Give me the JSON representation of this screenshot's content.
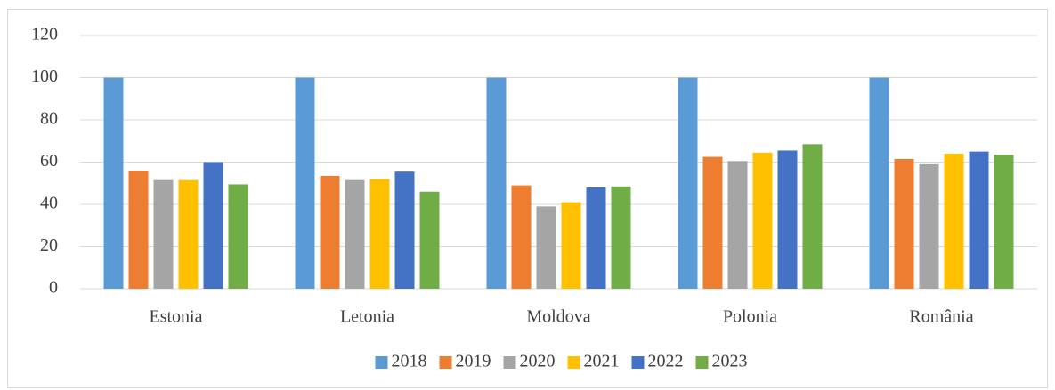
{
  "chart_data": {
    "type": "bar",
    "categories": [
      "Estonia",
      "Letonia",
      "Moldova",
      "Polonia",
      "România"
    ],
    "series": [
      {
        "name": "2018",
        "color": "#5b9bd5",
        "values": [
          100,
          100,
          100,
          100,
          100
        ]
      },
      {
        "name": "2019",
        "color": "#ed7d31",
        "values": [
          56,
          53.5,
          49,
          62.5,
          61.5
        ]
      },
      {
        "name": "2020",
        "color": "#a5a5a5",
        "values": [
          51.5,
          51.5,
          39,
          60.5,
          59
        ]
      },
      {
        "name": "2021",
        "color": "#ffc000",
        "values": [
          51.5,
          52,
          41,
          64.5,
          64
        ]
      },
      {
        "name": "2022",
        "color": "#4472c4",
        "values": [
          60,
          55.5,
          48,
          65.5,
          65
        ]
      },
      {
        "name": "2023",
        "color": "#70ad47",
        "values": [
          49.5,
          46,
          48.5,
          68.5,
          63.5
        ]
      }
    ],
    "ylim": [
      0,
      120
    ],
    "yticks": [
      0,
      20,
      40,
      60,
      80,
      100,
      120
    ],
    "grid": true,
    "legend": "bottom"
  }
}
